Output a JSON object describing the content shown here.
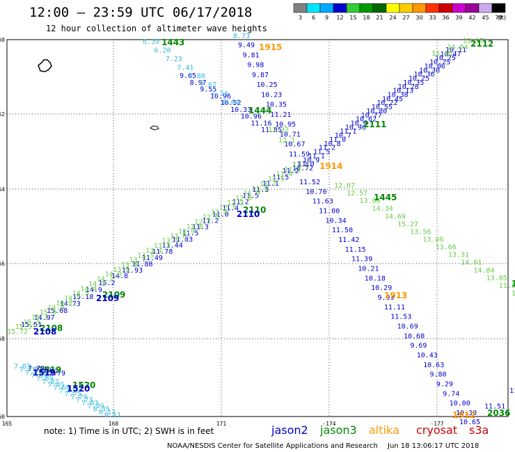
{
  "title": "12:00 — 23:59 UTC 06/17/2018",
  "subtitle": "12 hour collection of altimeter wave heights",
  "legend": {
    "unit": "(ft)",
    "colors": [
      "#808080",
      "#00e5ff",
      "#00aaff",
      "#0000cd",
      "#33cc33",
      "#009900",
      "#006600",
      "#ffff00",
      "#ffcc00",
      "#ff9900",
      "#ff3300",
      "#cc0000",
      "#cc00cc",
      "#990099",
      "#ccaaee",
      "#000000"
    ],
    "labels": [
      "3",
      "6",
      "9",
      "12",
      "15",
      "18",
      "21",
      "24",
      "27",
      "30",
      "33",
      "36",
      "39",
      "42",
      "45",
      "70"
    ]
  },
  "axes": {
    "lon_labels": [
      "165",
      "168",
      "171",
      "-174",
      "-177"
    ],
    "lat_labels": [
      "-50",
      "-52",
      "-54",
      "-56",
      "-58",
      "-60"
    ]
  },
  "colors": {
    "jason2": "#0000cc",
    "jason3": "#008800",
    "altika": "#ff9900",
    "cryosat": "#cc0000",
    "s3a": "#cc0000",
    "cyan": "#33bbdd",
    "lightgreen": "#66cc44"
  },
  "tracks": [
    {
      "name": "jason2-1915",
      "color": "#0000cc",
      "start": [
        342,
        68
      ],
      "end": [
        415,
        225
      ],
      "values": [
        "9.49",
        "9.81",
        "9.98",
        "9.87",
        "10.25",
        "10.23",
        "10.35",
        "11.21",
        "10.95",
        "10.71",
        "10.67",
        "11.59"
      ]
    },
    {
      "name": "jason2-1913",
      "color": "#0000cc",
      "start": [
        430,
        265
      ],
      "end": [
        655,
        597
      ],
      "values": [
        "11.52",
        "10.70",
        "11.63",
        "11.00",
        "10.34",
        "11.50",
        "11.42",
        "11.15",
        "11.39",
        "10.21",
        "10.18",
        "10.29",
        "9.93",
        "11.11",
        "11.53",
        "10.69",
        "10.60",
        "9.69",
        "10.43",
        "10.63",
        "9.80",
        "9.29",
        "9.74",
        "10.00",
        "10.30"
      ]
    },
    {
      "name": "jason2-1443",
      "color": "#0000cc",
      "start": [
        258,
        112
      ],
      "end": [
        375,
        190
      ],
      "values": [
        "9.65",
        "8.97",
        "9.55",
        "10.96",
        "10.52",
        "10.33",
        "10.96",
        "11.16",
        "11.85"
      ]
    },
    {
      "name": "jason2-2111",
      "color": "#0000cc",
      "start": [
        420,
        245
      ],
      "end": [
        640,
        75
      ],
      "values": [
        "10.72",
        "11.0",
        "10.9",
        "11.1",
        "11.5",
        "11.2",
        "10.8",
        "11.0",
        "10.7",
        "11.1",
        "10.96",
        "10.9",
        "10.62",
        "10.77",
        "10.80",
        "10.55",
        "10.22",
        "10.45",
        "10.38",
        "10.13",
        "10.28",
        "10.35",
        "10.25",
        "10.36",
        "10.30",
        "10.06",
        "10.25",
        "10.25",
        "10.47",
        "10.11"
      ]
    },
    {
      "name": "jason2-2110",
      "color": "#0000cc",
      "start": [
        175,
        392
      ],
      "end": [
        420,
        240
      ],
      "values": [
        "11.93",
        "11.88",
        "11.49",
        "11.78",
        "11.44",
        "11.83",
        "11.5",
        "11.3",
        "11.2",
        "11.0",
        "11.4",
        "11.2",
        "11.5",
        "11.3",
        "11.1",
        "11.5",
        "11.2",
        "11.4"
      ]
    },
    {
      "name": "jason2-2109",
      "color": "#0000cc",
      "start": [
        30,
        470
      ],
      "end": [
        160,
        400
      ],
      "values": [
        "15.51",
        "14.97",
        "15.08",
        "14.73",
        "15.18",
        "14.9",
        "15.2",
        "14.8"
      ]
    },
    {
      "name": "jason2-1446",
      "color": "#0000cc",
      "start": [
        660,
        610
      ],
      "end": [
        732,
        565
      ],
      "values": [
        "10.65",
        "11.51",
        "11.98"
      ]
    },
    {
      "name": "jason2-1519",
      "color": "#0000cc",
      "start": [
        40,
        533
      ],
      "end": [
        70,
        540
      ],
      "values": [
        "7.78",
        "7.79",
        "7.87",
        "7.79"
      ]
    },
    {
      "name": "jason3-1445",
      "color": "#66cc44",
      "start": [
        480,
        270
      ],
      "end": [
        735,
        425
      ],
      "values": [
        "12.07",
        "12.57",
        "13.06",
        "14.34",
        "14.69",
        "15.27",
        "13.56",
        "13.06",
        "13.66",
        "13.31",
        "14.01",
        "14.84",
        "13.05",
        "11.87",
        "13.3"
      ]
    },
    {
      "name": "jason3-2112",
      "color": "#66cc44",
      "start": [
        620,
        80
      ],
      "end": [
        665,
        62
      ],
      "values": [
        "15.46",
        "14.04",
        "13.97"
      ]
    },
    {
      "name": "jason3-1444",
      "color": "#66cc44",
      "start": [
        385,
        190
      ],
      "end": [
        400,
        205
      ],
      "values": [
        "12.32",
        "12.1"
      ]
    },
    {
      "name": "jason3-2108",
      "color": "#66cc44",
      "start": [
        10,
        480
      ],
      "end": [
        420,
        240
      ],
      "values": [
        "15.72",
        "15.51",
        "15.3",
        "15.1",
        "15.0",
        "14.9",
        "14.8",
        "14.7",
        "14.5",
        "14.4",
        "14.3",
        "14.2",
        "14.0",
        "13.9",
        "13.8",
        "13.7",
        "13.5",
        "13.4",
        "13.3",
        "13.1",
        "13.0",
        "12.9",
        "12.8",
        "12.7",
        "12.5",
        "12.4",
        "12.3",
        "12.2",
        "12.0",
        "11.9",
        "11.8",
        "11.7",
        "11.5",
        "11.4",
        "11.3",
        "11.2"
      ]
    },
    {
      "name": "cyan-1443",
      "color": "#33bbdd",
      "start": [
        205,
        63
      ],
      "end": [
        320,
        150
      ],
      "values": [
        "6.39",
        "6.20",
        "7.23",
        "7.41",
        "7.88",
        "7.67",
        "7.34",
        "8.64"
      ]
    },
    {
      "name": "cyan-1519",
      "color": "#33bbdd",
      "start": [
        20,
        530
      ],
      "end": [
        150,
        600
      ],
      "values": [
        "7.83",
        "7.75",
        "7.73",
        "7.89",
        "7.89",
        "7.82",
        "7.45",
        "7.60",
        "7.73",
        "7.75",
        "7.79",
        "7.73",
        "7.83",
        "7.99",
        "8.35",
        "8.12",
        "8.11"
      ]
    },
    {
      "name": "cyan-top",
      "color": "#33bbdd",
      "start": [
        335,
        55
      ],
      "end": [
        355,
        55
      ],
      "values": [
        "8.73"
      ]
    }
  ],
  "orbit_labels": [
    {
      "text": "1443",
      "color": "#008800",
      "pos": [
        232,
        65
      ]
    },
    {
      "text": "1915",
      "color": "#ff9900",
      "pos": [
        372,
        72
      ]
    },
    {
      "text": "2112",
      "color": "#008800",
      "pos": [
        676,
        67
      ]
    },
    {
      "text": "1444",
      "color": "#008800",
      "pos": [
        357,
        163
      ]
    },
    {
      "text": "2111",
      "color": "#008800",
      "pos": [
        522,
        183
      ]
    },
    {
      "text": "1914",
      "color": "#ff9900",
      "pos": [
        459,
        243
      ]
    },
    {
      "text": "1445",
      "color": "#008800",
      "pos": [
        537,
        288
      ]
    },
    {
      "text": "2110",
      "color": "#008800",
      "pos": [
        349,
        306
      ]
    },
    {
      "text": "2110",
      "color": "#0000cc",
      "pos": [
        340,
        312
      ]
    },
    {
      "text": "2109",
      "color": "#008800",
      "pos": [
        147,
        428
      ]
    },
    {
      "text": "2109",
      "color": "#0000cc",
      "pos": [
        138,
        433
      ]
    },
    {
      "text": "1913",
      "color": "#ff9900",
      "pos": [
        552,
        429
      ]
    },
    {
      "text": "2108",
      "color": "#008800",
      "pos": [
        57,
        476
      ]
    },
    {
      "text": "2108",
      "color": "#0000cc",
      "pos": [
        48,
        481
      ]
    },
    {
      "text": "1519",
      "color": "#008800",
      "pos": [
        55,
        536
      ]
    },
    {
      "text": "1519",
      "color": "#0000cc",
      "pos": [
        47,
        540
      ]
    },
    {
      "text": "1520",
      "color": "#008800",
      "pos": [
        104,
        558
      ]
    },
    {
      "text": "1520",
      "color": "#0000cc",
      "pos": [
        96,
        563
      ]
    },
    {
      "text": "1912",
      "color": "#ff9900",
      "pos": [
        650,
        601
      ]
    },
    {
      "text": "2036",
      "color": "#008800",
      "pos": [
        700,
        598
      ]
    },
    {
      "text": "1",
      "color": "#008800",
      "pos": [
        735,
        412
      ]
    }
  ],
  "notes": {
    "prefix": "note: 1) Time is in UTC; 2) SWH is in feet"
  },
  "satellites": [
    {
      "text": "jason2",
      "color": "#0000cc"
    },
    {
      "text": "jason3",
      "color": "#008800"
    },
    {
      "text": "altika",
      "color": "#ff9900"
    },
    {
      "text": "cryosat",
      "color": "#cc0000"
    },
    {
      "text": "s3a",
      "color": "#cc0000"
    }
  ],
  "credit_left": "NOAA/NESDIS Center for Satellite Applications and Research",
  "credit_right": "Jun 18 13:06:17 UTC 2018"
}
